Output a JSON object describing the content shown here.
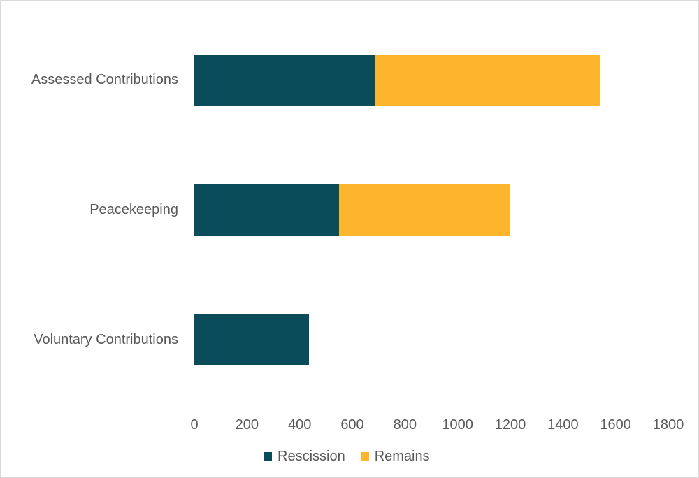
{
  "chart_data": {
    "type": "bar",
    "orientation": "horizontal",
    "stacked": true,
    "title": "",
    "xlabel": "",
    "ylabel": "",
    "categories": [
      "Assessed Contributions",
      "Peacekeeping",
      "Voluntary Contributions"
    ],
    "series": [
      {
        "name": "Rescission",
        "color": "#0b4c5a",
        "values": [
          688,
          550,
          435
        ]
      },
      {
        "name": "Remains",
        "color": "#fdb52e",
        "values": [
          852,
          650,
          0
        ]
      }
    ],
    "xlim": [
      0,
      1800
    ],
    "xticks": [
      "0",
      "200",
      "400",
      "600",
      "800",
      "1000",
      "1200",
      "1400",
      "1600",
      "1800"
    ],
    "grid": false,
    "legend_position": "bottom"
  },
  "labels": {
    "cat0": "Assessed Contributions",
    "cat1": "Peacekeeping",
    "cat2": "Voluntary Contributions",
    "legend0": "Rescission",
    "legend1": "Remains"
  }
}
